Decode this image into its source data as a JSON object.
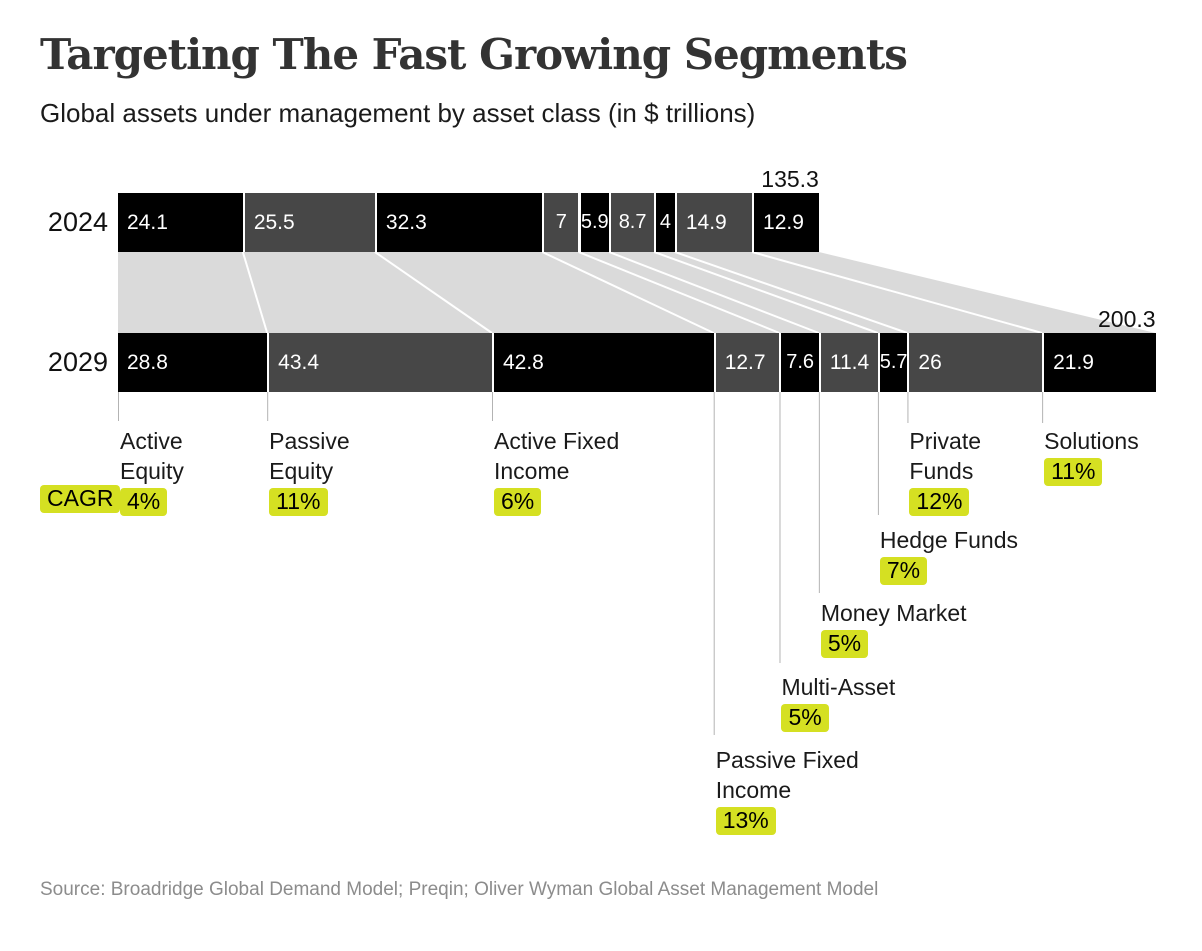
{
  "header": {
    "title": "Targeting The Fast Growing Segments",
    "subtitle": "Global assets under management by asset class (in $ trillions)"
  },
  "chart_data": {
    "type": "bar",
    "subtype": "stacked-flow-comparison",
    "unit": "$ trillions",
    "rows": [
      {
        "year": "2024",
        "total": 135.3,
        "total_label": "135.3"
      },
      {
        "year": "2029",
        "total": 200.3,
        "total_label": "200.3"
      }
    ],
    "cagr_prefix": "CAGR",
    "segments": [
      {
        "label": "Active Equity",
        "label_lines": [
          "Active",
          "Equity"
        ],
        "cagr": "4%",
        "v2024": 24.1,
        "v2029": 28.8
      },
      {
        "label": "Passive Equity",
        "label_lines": [
          "Passive",
          "Equity"
        ],
        "cagr": "11%",
        "v2024": 25.5,
        "v2029": 43.4
      },
      {
        "label": "Active Fixed Income",
        "label_lines": [
          "Active Fixed",
          "Income"
        ],
        "cagr": "6%",
        "v2024": 32.3,
        "v2029": 42.8
      },
      {
        "label": "Passive Fixed Income",
        "label_lines": [
          "Passive Fixed",
          "Income"
        ],
        "cagr": "13%",
        "v2024": 7,
        "v2029": 12.7
      },
      {
        "label": "Multi-Asset",
        "label_lines": [
          "Multi-Asset"
        ],
        "cagr": "5%",
        "v2024": 5.9,
        "v2029": 7.6
      },
      {
        "label": "Money Market",
        "label_lines": [
          "Money Market"
        ],
        "cagr": "5%",
        "v2024": 8.7,
        "v2029": 11.4
      },
      {
        "label": "Hedge Funds",
        "label_lines": [
          "Hedge Funds"
        ],
        "cagr": "7%",
        "v2024": 4,
        "v2029": 5.7
      },
      {
        "label": "Private Funds",
        "label_lines": [
          "Private",
          "Funds"
        ],
        "cagr": "12%",
        "v2024": 14.9,
        "v2029": 26
      },
      {
        "label": "Solutions",
        "label_lines": [
          "Solutions"
        ],
        "cagr": "11%",
        "v2024": 12.9,
        "v2029": 21.9
      }
    ],
    "colors": {
      "segment_dark": "#000000",
      "segment_gray": "#474747",
      "flow_band": "#dadada",
      "separator": "#ffffff",
      "callout_line": "#b3b3b3",
      "highlight": "#d5e022",
      "value_text": "#ffffff"
    },
    "legend_position": "none",
    "grid": false
  },
  "footer": {
    "source": "Source: Broadridge Global Demand Model; Preqin; Oliver Wyman Global Asset Management Model"
  }
}
